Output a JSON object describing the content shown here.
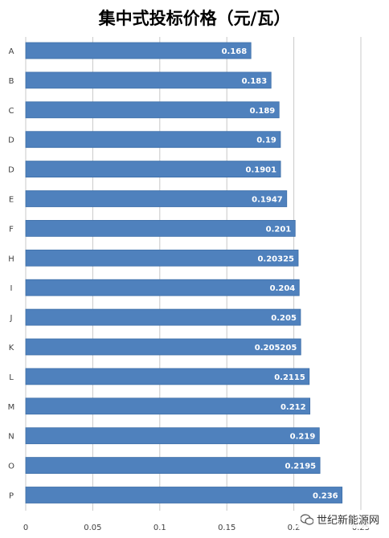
{
  "chart_data": {
    "type": "bar",
    "orientation": "horizontal",
    "title": "集中式投标价格（元/瓦）",
    "categories": [
      "A",
      "B",
      "C",
      "D",
      "D",
      "E",
      "F",
      "H",
      "I",
      "J",
      "K",
      "L",
      "M",
      "N",
      "O",
      "P"
    ],
    "values": [
      0.168,
      0.183,
      0.189,
      0.19,
      0.1901,
      0.1947,
      0.201,
      0.20325,
      0.204,
      0.205,
      0.205205,
      0.2115,
      0.212,
      0.219,
      0.2195,
      0.236
    ],
    "data_labels": [
      "0.168",
      "0.183",
      "0.189",
      "0.19",
      "0.1901",
      "0.1947",
      "0.201",
      "0.20325",
      "0.204",
      "0.205",
      "0.205205",
      "0.2115",
      "0.212",
      "0.219",
      "0.2195",
      "0.236"
    ],
    "xlim": [
      0,
      0.25
    ],
    "x_ticks": [
      "0",
      "0.05",
      "0.1",
      "0.15",
      "0.2",
      "0.25"
    ],
    "grid": true,
    "legend": "none",
    "colors": {
      "bar": "#4f81bd",
      "bar_edge": "#3e6fa8",
      "grid": "#c8c8c8",
      "label": "#ffffff",
      "text": "#404040",
      "title": "#404040"
    }
  },
  "watermark": {
    "text": "世纪新能源网",
    "icon": "wechat-icon"
  }
}
